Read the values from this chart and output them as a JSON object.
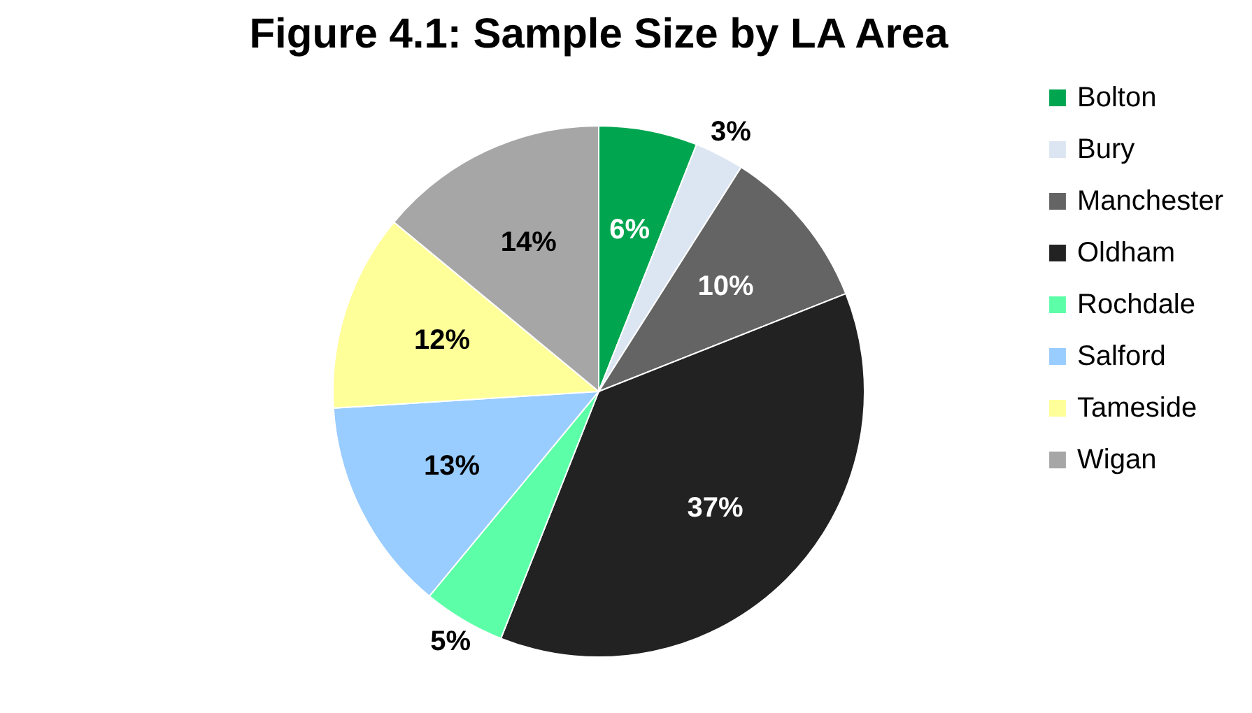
{
  "chart_data": {
    "type": "pie",
    "title": "Figure 4.1: Sample Size by LA Area",
    "categories": [
      "Bolton",
      "Bury",
      "Manchester",
      "Oldham",
      "Rochdale",
      "Salford",
      "Tameside",
      "Wigan"
    ],
    "values": [
      6,
      3,
      10,
      37,
      5,
      13,
      12,
      14
    ],
    "colors": [
      "#00a550",
      "#dce6f2",
      "#646464",
      "#222222",
      "#5cffa8",
      "#99ccff",
      "#ffff99",
      "#a6a6a6"
    ],
    "data_labels": true,
    "value_labels": [
      "6%",
      "3%",
      "10%",
      "37%",
      "5%",
      "13%",
      "12%",
      "14%"
    ],
    "legend": "right"
  }
}
